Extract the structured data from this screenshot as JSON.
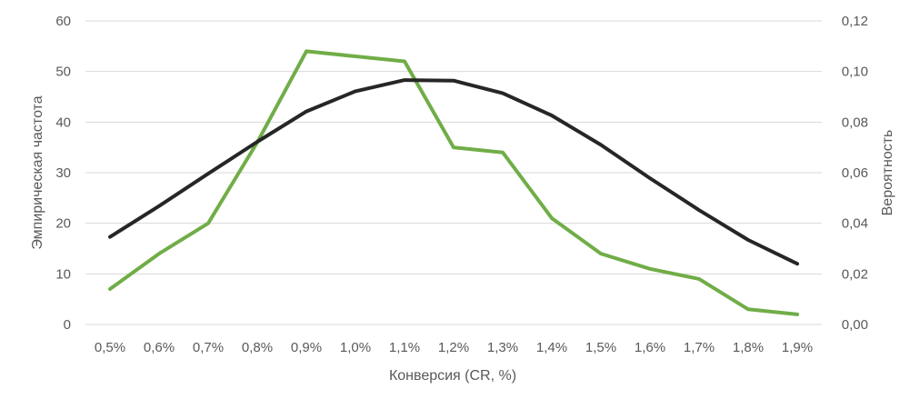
{
  "chart_data": {
    "type": "line",
    "title": "",
    "xlabel": "Конверсия (CR, %)",
    "ylabel": "Эмпирическая частота",
    "y2label": "Вероятность",
    "categories": [
      "0,5%",
      "0,6%",
      "0,7%",
      "0,8%",
      "0,9%",
      "1,0%",
      "1,1%",
      "1,2%",
      "1,3%",
      "1,4%",
      "1,5%",
      "1,6%",
      "1,7%",
      "1,8%",
      "1,9%"
    ],
    "ylim": [
      0,
      60
    ],
    "y2lim": [
      0,
      0.12
    ],
    "yticks": [
      "0",
      "10",
      "20",
      "30",
      "40",
      "50",
      "60"
    ],
    "y2ticks": [
      "0,00",
      "0,02",
      "0,04",
      "0,06",
      "0,08",
      "0,10",
      "0,12"
    ],
    "grid": true,
    "legend": "none",
    "series": [
      {
        "axis": "left",
        "color": "#70ad47",
        "values": [
          7,
          14,
          20,
          36,
          54,
          53,
          52,
          35,
          34,
          21,
          14,
          11,
          9,
          3,
          2
        ]
      },
      {
        "axis": "right",
        "color": "#262626",
        "values": [
          0.0346,
          0.0468,
          0.0596,
          0.0722,
          0.0842,
          0.0922,
          0.0966,
          0.0964,
          0.0914,
          0.0826,
          0.071,
          0.0578,
          0.0452,
          0.0334,
          0.024
        ]
      }
    ]
  }
}
